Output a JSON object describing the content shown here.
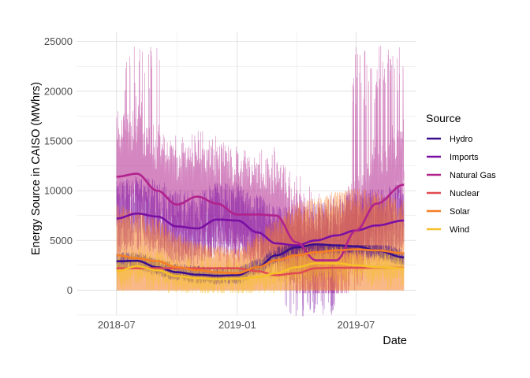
{
  "chart_data": {
    "type": "line",
    "title": "",
    "xlabel": "Date",
    "ylabel": "Energy Source in CAISO (MWhrs)",
    "x_start": "2018-07-01",
    "x_end": "2019-09-12",
    "xlim": [
      "2018-05-01",
      "2019-10-01"
    ],
    "ylim": [
      -2500,
      26000
    ],
    "x_ticks": [
      {
        "date": "2018-07-01",
        "label": "2018-07"
      },
      {
        "date": "2019-01-01",
        "label": "2019-01"
      },
      {
        "date": "2019-07-01",
        "label": "2019-07"
      }
    ],
    "y_ticks": [
      0,
      5000,
      10000,
      15000,
      20000,
      25000
    ],
    "grid": true,
    "legend": {
      "title": "Source",
      "position": "right"
    },
    "series": [
      {
        "name": "Hydro",
        "color": "#3b0f8c",
        "smooth": [
          [
            "2018-07-01",
            2900
          ],
          [
            "2018-08-01",
            2950
          ],
          [
            "2018-09-01",
            2300
          ],
          [
            "2018-10-01",
            1800
          ],
          [
            "2018-11-01",
            1550
          ],
          [
            "2018-12-01",
            1450
          ],
          [
            "2019-01-01",
            1500
          ],
          [
            "2019-02-01",
            2300
          ],
          [
            "2019-03-01",
            3500
          ],
          [
            "2019-04-01",
            4300
          ],
          [
            "2019-05-01",
            4600
          ],
          [
            "2019-06-01",
            4500
          ],
          [
            "2019-07-01",
            4400
          ],
          [
            "2019-08-01",
            4000
          ],
          [
            "2019-09-12",
            3300
          ]
        ],
        "raw_band": [
          1200,
          4500
        ]
      },
      {
        "name": "Imports",
        "color": "#7a0fa3",
        "smooth": [
          [
            "2018-07-01",
            7200
          ],
          [
            "2018-08-01",
            7700
          ],
          [
            "2018-09-01",
            7400
          ],
          [
            "2018-10-01",
            6400
          ],
          [
            "2018-11-01",
            6200
          ],
          [
            "2018-12-01",
            7100
          ],
          [
            "2019-01-01",
            7000
          ],
          [
            "2019-02-01",
            5800
          ],
          [
            "2019-03-01",
            4700
          ],
          [
            "2019-04-01",
            4500
          ],
          [
            "2019-05-01",
            5000
          ],
          [
            "2019-06-01",
            5500
          ],
          [
            "2019-07-01",
            6000
          ],
          [
            "2019-08-01",
            6500
          ],
          [
            "2019-09-12",
            7000
          ]
        ],
        "raw_band": [
          2000,
          14000
        ]
      },
      {
        "name": "Natural Gas",
        "color": "#b1228c",
        "smooth": [
          [
            "2018-07-01",
            11400
          ],
          [
            "2018-08-01",
            11700
          ],
          [
            "2018-09-01",
            10000
          ],
          [
            "2018-10-01",
            8600
          ],
          [
            "2018-11-01",
            9400
          ],
          [
            "2018-12-01",
            8700
          ],
          [
            "2019-01-01",
            7600
          ],
          [
            "2019-02-01",
            7600
          ],
          [
            "2019-03-01",
            7500
          ],
          [
            "2019-04-01",
            4800
          ],
          [
            "2019-05-01",
            3000
          ],
          [
            "2019-06-01",
            3000
          ],
          [
            "2019-07-01",
            6000
          ],
          [
            "2019-08-01",
            8700
          ],
          [
            "2019-09-12",
            10600
          ]
        ],
        "raw_band": [
          4000,
          24700
        ]
      },
      {
        "name": "Nuclear",
        "color": "#e04a52",
        "smooth": [
          [
            "2018-07-01",
            2200
          ],
          [
            "2018-08-01",
            2200
          ],
          [
            "2018-09-01",
            2200
          ],
          [
            "2018-10-01",
            2200
          ],
          [
            "2018-11-01",
            2200
          ],
          [
            "2018-12-01",
            2200
          ],
          [
            "2019-01-01",
            2200
          ],
          [
            "2019-02-01",
            1900
          ],
          [
            "2019-03-01",
            1500
          ],
          [
            "2019-04-01",
            1700
          ],
          [
            "2019-05-01",
            2200
          ],
          [
            "2019-06-01",
            2250
          ],
          [
            "2019-07-01",
            2250
          ],
          [
            "2019-08-01",
            2250
          ],
          [
            "2019-09-12",
            2250
          ]
        ],
        "raw_band": [
          1800,
          2300
        ]
      },
      {
        "name": "Solar",
        "color": "#f47e24",
        "smooth": [
          [
            "2018-07-01",
            3500
          ],
          [
            "2018-08-01",
            3200
          ],
          [
            "2018-09-01",
            2900
          ],
          [
            "2018-10-01",
            2300
          ],
          [
            "2018-11-01",
            2000
          ],
          [
            "2018-12-01",
            1800
          ],
          [
            "2019-01-01",
            1700
          ],
          [
            "2019-02-01",
            2300
          ],
          [
            "2019-03-01",
            3000
          ],
          [
            "2019-04-01",
            3500
          ],
          [
            "2019-05-01",
            3800
          ],
          [
            "2019-06-01",
            4000
          ],
          [
            "2019-07-01",
            4100
          ],
          [
            "2019-08-01",
            4000
          ],
          [
            "2019-09-12",
            3700
          ]
        ],
        "raw_band": [
          0,
          10500
        ]
      },
      {
        "name": "Wind",
        "color": "#f6c02a",
        "smooth": [
          [
            "2018-07-01",
            1900
          ],
          [
            "2018-08-01",
            2400
          ],
          [
            "2018-09-01",
            2000
          ],
          [
            "2018-10-01",
            1400
          ],
          [
            "2018-11-01",
            1200
          ],
          [
            "2018-12-01",
            1100
          ],
          [
            "2019-01-01",
            1150
          ],
          [
            "2019-02-01",
            1300
          ],
          [
            "2019-03-01",
            1700
          ],
          [
            "2019-04-01",
            2300
          ],
          [
            "2019-05-01",
            2700
          ],
          [
            "2019-06-01",
            2700
          ],
          [
            "2019-07-01",
            2500
          ],
          [
            "2019-08-01",
            2300
          ],
          [
            "2019-09-12",
            2200
          ]
        ],
        "raw_band": [
          0,
          5200
        ]
      }
    ]
  }
}
